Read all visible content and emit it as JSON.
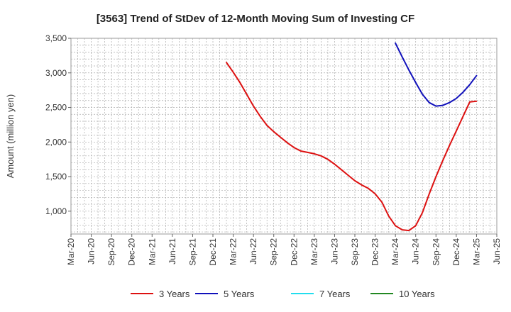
{
  "chart_data": {
    "type": "line",
    "title": "[3563]  Trend of StDev of 12-Month Moving Sum of Investing CF",
    "ylabel": "Amount (million yen)",
    "xlabel": "",
    "ylim": [
      670,
      3500
    ],
    "yticks": [
      1000,
      1500,
      2000,
      2500,
      3000,
      3500
    ],
    "ytick_labels": [
      "1,000",
      "1,500",
      "2,000",
      "2,500",
      "3,000",
      "3,500"
    ],
    "x_range": [
      "2020-03",
      "2025-06"
    ],
    "xtick_labels": [
      "Mar-20",
      "Jun-20",
      "Sep-20",
      "Dec-20",
      "Mar-21",
      "Jun-21",
      "Sep-21",
      "Dec-21",
      "Mar-22",
      "Jun-22",
      "Sep-22",
      "Dec-22",
      "Mar-23",
      "Jun-23",
      "Sep-23",
      "Dec-23",
      "Mar-24",
      "Jun-24",
      "Sep-24",
      "Dec-24",
      "Mar-25",
      "Jun-25"
    ],
    "grid": true,
    "legend_position": "bottom",
    "series": [
      {
        "name": "3 Years",
        "color": "#dd1111",
        "x": [
          "2022-02",
          "2022-03",
          "2022-04",
          "2022-05",
          "2022-06",
          "2022-07",
          "2022-08",
          "2022-09",
          "2022-10",
          "2022-11",
          "2022-12",
          "2023-01",
          "2023-02",
          "2023-03",
          "2023-04",
          "2023-05",
          "2023-06",
          "2023-07",
          "2023-08",
          "2023-09",
          "2023-10",
          "2023-11",
          "2023-12",
          "2024-01",
          "2024-02",
          "2024-03",
          "2024-04",
          "2024-05",
          "2024-06",
          "2024-07",
          "2024-08",
          "2024-09",
          "2024-10",
          "2024-11",
          "2024-12",
          "2025-01",
          "2025-02",
          "2025-03"
        ],
        "y": [
          3150,
          3010,
          2860,
          2690,
          2520,
          2370,
          2240,
          2150,
          2070,
          1990,
          1920,
          1870,
          1850,
          1830,
          1800,
          1750,
          1680,
          1600,
          1520,
          1440,
          1380,
          1330,
          1250,
          1130,
          930,
          790,
          730,
          720,
          790,
          980,
          1250,
          1500,
          1730,
          1950,
          2160,
          2370,
          2580,
          2590
        ]
      },
      {
        "name": "5 Years",
        "color": "#1111bb",
        "x": [
          "2024-03",
          "2024-04",
          "2024-05",
          "2024-06",
          "2024-07",
          "2024-08",
          "2024-09",
          "2024-10",
          "2024-11",
          "2024-12",
          "2025-01",
          "2025-02",
          "2025-03"
        ],
        "y": [
          3430,
          3230,
          3040,
          2860,
          2690,
          2570,
          2520,
          2530,
          2570,
          2630,
          2720,
          2830,
          2960
        ]
      },
      {
        "name": "7 Years",
        "color": "#22ddee",
        "x": [],
        "y": []
      },
      {
        "name": "10 Years",
        "color": "#228822",
        "x": [],
        "y": []
      }
    ]
  }
}
